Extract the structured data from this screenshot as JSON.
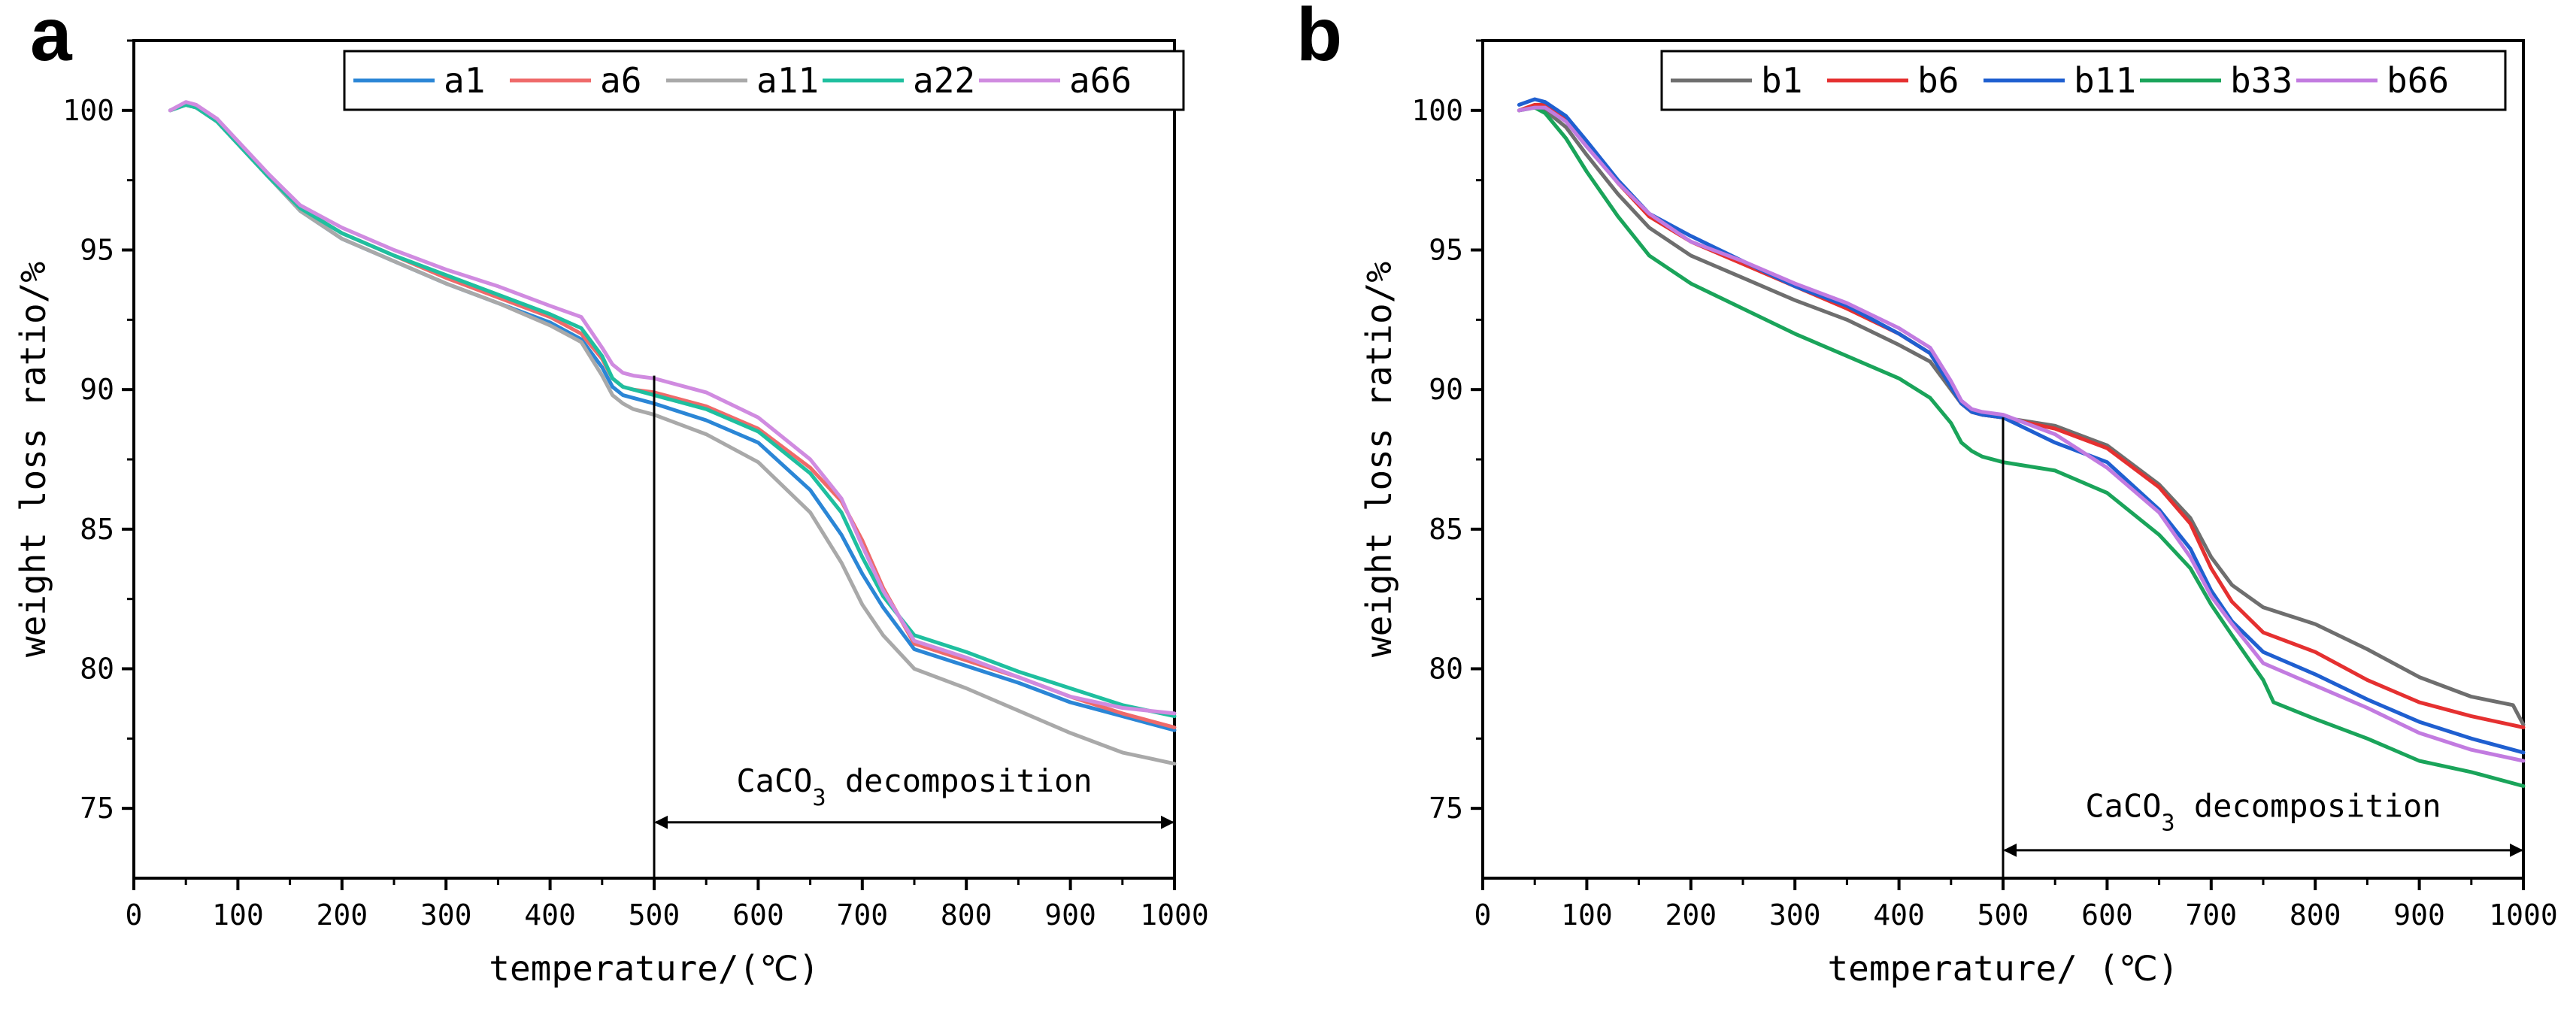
{
  "chart_data": [
    {
      "panel": "a",
      "type": "line",
      "title": "",
      "xlabel": "temperature/(℃)",
      "ylabel": "weight loss ratio/%",
      "xlim": [
        0,
        1000
      ],
      "ylim": [
        72.5,
        102.5
      ],
      "xticks": [
        0,
        100,
        200,
        300,
        400,
        500,
        600,
        700,
        800,
        900,
        1000
      ],
      "yticks": [
        75,
        80,
        85,
        90,
        95,
        100
      ],
      "legend_position": "top-right",
      "annotation": {
        "text_main": "CaCO",
        "text_sub": "3",
        "text_rest": " decomposition",
        "vline_x": 500,
        "vline_top": 90.5,
        "arrow_from": 500,
        "arrow_to": 1000,
        "arrow_y": 74.5,
        "text_x": 750,
        "text_y": 75.6
      },
      "series": [
        {
          "name": "a1",
          "color": "#2b86d6",
          "x": [
            35,
            50,
            60,
            80,
            100,
            130,
            160,
            200,
            250,
            300,
            350,
            400,
            430,
            450,
            460,
            470,
            480,
            500,
            550,
            600,
            650,
            680,
            700,
            720,
            750,
            800,
            850,
            900,
            950,
            1000
          ],
          "y": [
            100.0,
            100.2,
            100.1,
            99.6,
            98.8,
            97.6,
            96.4,
            95.4,
            94.6,
            93.8,
            93.1,
            92.4,
            91.8,
            90.8,
            90.1,
            89.8,
            89.7,
            89.5,
            88.9,
            88.1,
            86.4,
            84.8,
            83.4,
            82.2,
            80.7,
            80.1,
            79.5,
            78.8,
            78.3,
            77.8
          ]
        },
        {
          "name": "a6",
          "color": "#ef6a6a",
          "x": [
            35,
            50,
            60,
            80,
            100,
            130,
            160,
            200,
            250,
            300,
            350,
            400,
            430,
            450,
            460,
            470,
            480,
            500,
            550,
            600,
            650,
            680,
            700,
            720,
            750,
            800,
            850,
            900,
            950,
            1000
          ],
          "y": [
            100.0,
            100.2,
            100.1,
            99.6,
            98.8,
            97.6,
            96.5,
            95.6,
            94.8,
            94.0,
            93.3,
            92.6,
            92.0,
            91.1,
            90.4,
            90.1,
            90.0,
            89.9,
            89.4,
            88.6,
            87.2,
            86.0,
            84.6,
            82.9,
            80.9,
            80.3,
            79.7,
            79.0,
            78.4,
            77.9
          ]
        },
        {
          "name": "a11",
          "color": "#a9a9a9",
          "x": [
            35,
            50,
            60,
            80,
            100,
            130,
            160,
            200,
            250,
            300,
            350,
            400,
            430,
            450,
            460,
            470,
            480,
            500,
            550,
            600,
            650,
            680,
            700,
            720,
            750,
            800,
            850,
            900,
            950,
            1000
          ],
          "y": [
            100.0,
            100.2,
            100.1,
            99.6,
            98.8,
            97.6,
            96.4,
            95.4,
            94.6,
            93.8,
            93.1,
            92.3,
            91.7,
            90.5,
            89.8,
            89.5,
            89.3,
            89.1,
            88.4,
            87.4,
            85.6,
            83.8,
            82.3,
            81.2,
            80.0,
            79.3,
            78.5,
            77.7,
            77.0,
            76.6
          ]
        },
        {
          "name": "a22",
          "color": "#1fbf9f",
          "x": [
            35,
            50,
            60,
            80,
            100,
            130,
            160,
            200,
            250,
            300,
            350,
            400,
            430,
            450,
            460,
            470,
            480,
            500,
            550,
            600,
            650,
            680,
            700,
            720,
            750,
            800,
            850,
            900,
            950,
            1000
          ],
          "y": [
            100.0,
            100.2,
            100.1,
            99.6,
            98.8,
            97.6,
            96.5,
            95.6,
            94.8,
            94.1,
            93.4,
            92.7,
            92.2,
            91.2,
            90.4,
            90.1,
            90.0,
            89.8,
            89.3,
            88.5,
            87.0,
            85.6,
            84.0,
            82.6,
            81.2,
            80.6,
            79.9,
            79.3,
            78.7,
            78.3
          ]
        },
        {
          "name": "a66",
          "color": "#d08be0",
          "x": [
            35,
            50,
            60,
            80,
            100,
            130,
            160,
            200,
            250,
            300,
            350,
            400,
            430,
            450,
            460,
            470,
            480,
            500,
            550,
            600,
            650,
            680,
            700,
            720,
            750,
            800,
            850,
            900,
            950,
            1000
          ],
          "y": [
            100.0,
            100.3,
            100.2,
            99.7,
            98.9,
            97.7,
            96.6,
            95.8,
            95.0,
            94.3,
            93.7,
            93.0,
            92.6,
            91.5,
            90.9,
            90.6,
            90.5,
            90.4,
            89.9,
            89.0,
            87.5,
            86.1,
            84.4,
            82.8,
            81.0,
            80.4,
            79.7,
            79.0,
            78.6,
            78.4
          ]
        }
      ]
    },
    {
      "panel": "b",
      "type": "line",
      "title": "",
      "xlabel": "temperature/ (℃)",
      "ylabel": "weight loss ratio/%",
      "xlim": [
        0,
        1000
      ],
      "ylim": [
        72.5,
        102.5
      ],
      "xticks": [
        0,
        100,
        200,
        300,
        400,
        500,
        600,
        700,
        800,
        900,
        1000
      ],
      "yticks": [
        75,
        80,
        85,
        90,
        95,
        100
      ],
      "legend_position": "top-right",
      "annotation": {
        "text_main": "CaCO",
        "text_sub": "3",
        "text_rest": " decomposition",
        "vline_x": 500,
        "vline_top": 89.0,
        "arrow_from": 500,
        "arrow_to": 1000,
        "arrow_y": 73.5,
        "text_x": 750,
        "text_y": 74.7
      },
      "series": [
        {
          "name": "b1",
          "color": "#6e6e6e",
          "x": [
            35,
            50,
            60,
            80,
            100,
            130,
            160,
            200,
            250,
            300,
            350,
            400,
            430,
            450,
            460,
            470,
            480,
            500,
            550,
            600,
            650,
            680,
            700,
            720,
            750,
            800,
            850,
            900,
            950,
            990,
            1000
          ],
          "y": [
            100.0,
            100.1,
            100.0,
            99.4,
            98.4,
            97.0,
            95.8,
            94.8,
            94.0,
            93.2,
            92.5,
            91.6,
            91.0,
            90.0,
            89.5,
            89.2,
            89.1,
            89.0,
            88.7,
            88.0,
            86.6,
            85.4,
            84.0,
            83.0,
            82.2,
            81.6,
            80.7,
            79.7,
            79.0,
            78.7,
            78.0
          ]
        },
        {
          "name": "b6",
          "color": "#e53030",
          "x": [
            35,
            50,
            60,
            80,
            100,
            130,
            160,
            200,
            250,
            300,
            350,
            400,
            430,
            450,
            460,
            470,
            480,
            500,
            550,
            600,
            650,
            680,
            700,
            720,
            750,
            800,
            850,
            900,
            950,
            1000
          ],
          "y": [
            100.0,
            100.2,
            100.2,
            99.7,
            98.8,
            97.4,
            96.2,
            95.3,
            94.5,
            93.7,
            92.9,
            92.0,
            91.3,
            90.1,
            89.5,
            89.2,
            89.1,
            89.0,
            88.6,
            87.9,
            86.5,
            85.2,
            83.6,
            82.4,
            81.3,
            80.6,
            79.6,
            78.8,
            78.3,
            77.9
          ]
        },
        {
          "name": "b11",
          "color": "#1f5fd0",
          "x": [
            35,
            50,
            60,
            80,
            100,
            130,
            160,
            200,
            250,
            300,
            350,
            400,
            430,
            450,
            460,
            470,
            480,
            500,
            550,
            600,
            650,
            680,
            700,
            720,
            750,
            800,
            850,
            900,
            950,
            1000
          ],
          "y": [
            100.2,
            100.4,
            100.3,
            99.8,
            98.9,
            97.5,
            96.3,
            95.5,
            94.6,
            93.7,
            93.0,
            92.0,
            91.3,
            90.1,
            89.5,
            89.2,
            89.1,
            89.0,
            88.1,
            87.4,
            85.7,
            84.3,
            82.8,
            81.7,
            80.6,
            79.8,
            78.9,
            78.1,
            77.5,
            77.0
          ]
        },
        {
          "name": "b33",
          "color": "#1aa45a",
          "x": [
            35,
            50,
            60,
            80,
            100,
            130,
            160,
            200,
            250,
            300,
            350,
            400,
            430,
            450,
            460,
            470,
            480,
            500,
            550,
            600,
            650,
            680,
            700,
            720,
            750,
            760,
            800,
            850,
            900,
            950,
            1000
          ],
          "y": [
            100.0,
            100.1,
            99.9,
            99.0,
            97.8,
            96.2,
            94.8,
            93.8,
            92.9,
            92.0,
            91.2,
            90.4,
            89.7,
            88.8,
            88.1,
            87.8,
            87.6,
            87.4,
            87.1,
            86.3,
            84.8,
            83.6,
            82.3,
            81.2,
            79.6,
            78.8,
            78.2,
            77.5,
            76.7,
            76.3,
            75.8
          ]
        },
        {
          "name": "b66",
          "color": "#c27be0",
          "x": [
            35,
            50,
            60,
            80,
            100,
            130,
            160,
            200,
            250,
            300,
            350,
            400,
            430,
            450,
            460,
            470,
            480,
            500,
            550,
            600,
            650,
            680,
            700,
            720,
            750,
            800,
            850,
            900,
            950,
            1000
          ],
          "y": [
            100.0,
            100.1,
            100.1,
            99.6,
            98.7,
            97.4,
            96.3,
            95.3,
            94.6,
            93.8,
            93.1,
            92.2,
            91.5,
            90.3,
            89.6,
            89.3,
            89.2,
            89.1,
            88.4,
            87.2,
            85.6,
            84.0,
            82.6,
            81.6,
            80.2,
            79.4,
            78.6,
            77.7,
            77.1,
            76.7
          ]
        }
      ]
    }
  ]
}
